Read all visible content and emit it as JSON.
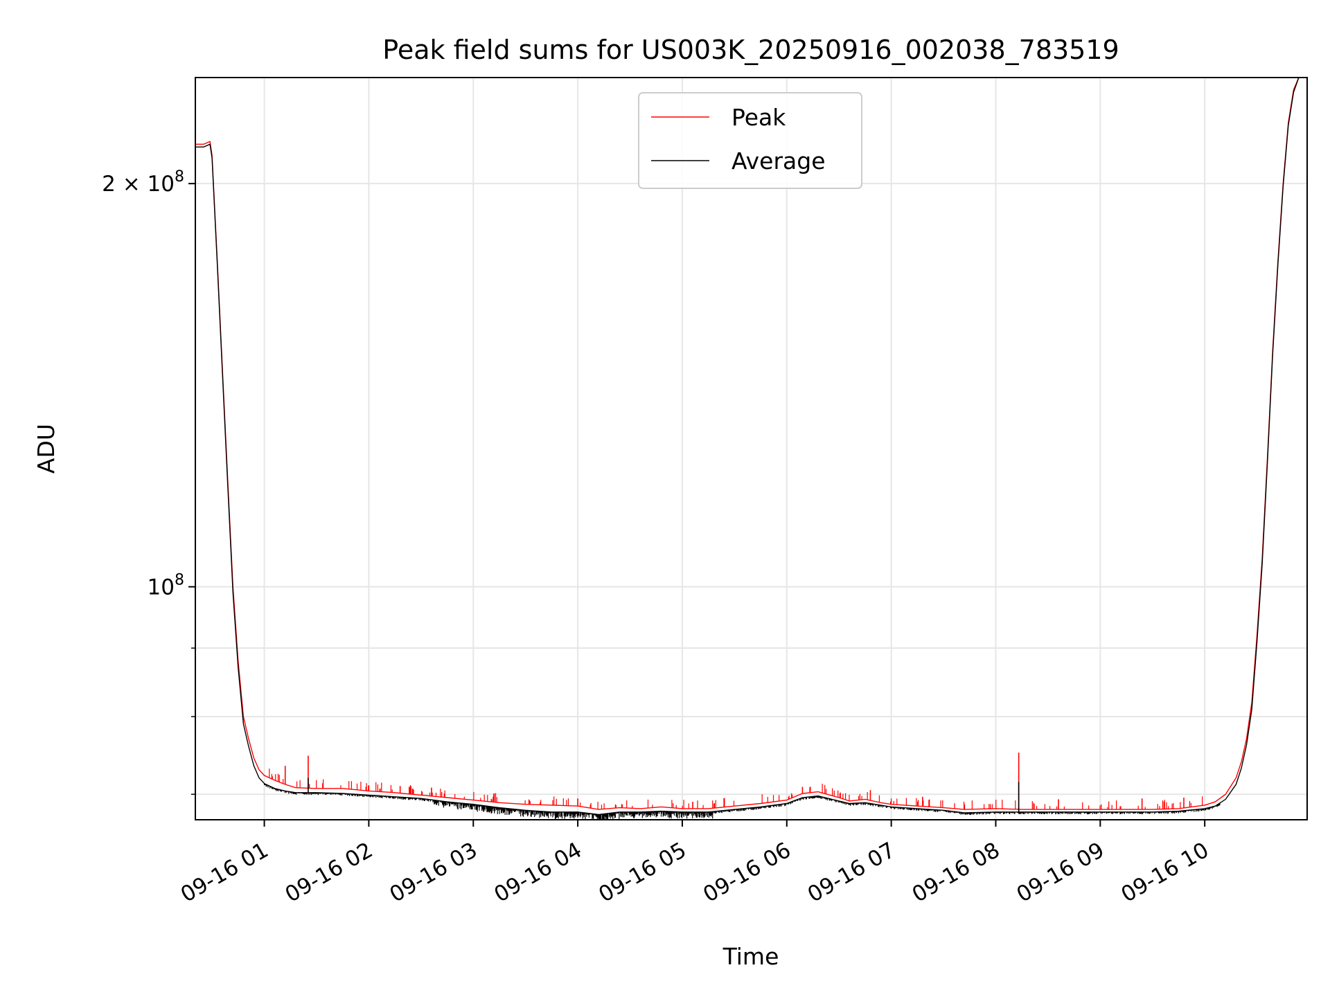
{
  "chart_data": {
    "type": "line",
    "title": "Peak field sums for US003K_20250916_002038_783519",
    "xlabel": "Time",
    "ylabel": "ADU",
    "yscale": "log",
    "grid": true,
    "legend_position": "top-center",
    "x_unit": "hours since 2025-09-16 00:00",
    "xlim": [
      0.34,
      10.98
    ],
    "ylim": [
      67000000,
      240000000
    ],
    "x_ticks": [
      {
        "value": 1,
        "label": "09-16 01"
      },
      {
        "value": 2,
        "label": "09-16 02"
      },
      {
        "value": 3,
        "label": "09-16 03"
      },
      {
        "value": 4,
        "label": "09-16 04"
      },
      {
        "value": 5,
        "label": "09-16 05"
      },
      {
        "value": 6,
        "label": "09-16 06"
      },
      {
        "value": 7,
        "label": "09-16 07"
      },
      {
        "value": 8,
        "label": "09-16 08"
      },
      {
        "value": 9,
        "label": "09-16 09"
      },
      {
        "value": 10,
        "label": "09-16 10"
      }
    ],
    "y_major_ticks": [
      {
        "value": 100000000,
        "base": "10",
        "exp": "8",
        "mantissa": ""
      },
      {
        "value": 200000000,
        "base": "10",
        "exp": "8",
        "mantissa": "2 × "
      }
    ],
    "y_minor_ticks": [
      70000000,
      80000000,
      90000000
    ],
    "series": [
      {
        "name": "Peak",
        "color": "#ff0000",
        "x": [
          0.34,
          0.42,
          0.48,
          0.5,
          0.55,
          0.6,
          0.65,
          0.7,
          0.75,
          0.8,
          0.85,
          0.9,
          0.95,
          1.0,
          1.1,
          1.2,
          1.3,
          1.5,
          1.75,
          2.0,
          2.25,
          2.5,
          2.75,
          3.0,
          3.25,
          3.5,
          3.75,
          4.0,
          4.2,
          4.4,
          4.6,
          4.8,
          5.0,
          5.25,
          5.5,
          5.75,
          6.0,
          6.15,
          6.3,
          6.5,
          6.6,
          6.75,
          6.9,
          7.0,
          7.25,
          7.5,
          7.7,
          8.0,
          8.25,
          8.5,
          8.75,
          9.0,
          9.25,
          9.5,
          9.75,
          10.0,
          10.1,
          10.2,
          10.3,
          10.35,
          10.4,
          10.45,
          10.5,
          10.55,
          10.6,
          10.65,
          10.7,
          10.75,
          10.8,
          10.85,
          10.9,
          10.95,
          10.98
        ],
        "y": [
          214000000,
          214000000,
          215000000,
          210000000,
          175000000,
          145000000,
          120000000,
          100000000,
          88000000,
          80000000,
          77000000,
          74500000,
          73000000,
          72300000,
          71700000,
          71200000,
          70800000,
          70700000,
          70700000,
          70400000,
          70200000,
          69900000,
          69600000,
          69300000,
          69000000,
          68800000,
          68700000,
          68600000,
          68200000,
          68400000,
          68300000,
          68500000,
          68300000,
          68300000,
          68600000,
          68900000,
          69300000,
          70100000,
          70300000,
          69600000,
          69200000,
          69400000,
          69000000,
          68800000,
          68600000,
          68400000,
          68200000,
          68300000,
          68200000,
          68200000,
          68200000,
          68200000,
          68200000,
          68200000,
          68300000,
          68700000,
          69100000,
          70000000,
          72000000,
          74000000,
          77000000,
          82000000,
          92000000,
          105000000,
          125000000,
          150000000,
          175000000,
          200000000,
          222000000,
          235000000,
          240000000,
          240000000,
          240000000
        ],
        "spikes": [
          {
            "x": 1.2,
            "y": 73500000
          },
          {
            "x": 1.42,
            "y": 74800000
          },
          {
            "x": 2.0,
            "y": 71100000
          },
          {
            "x": 2.3,
            "y": 71000000
          },
          {
            "x": 2.6,
            "y": 70800000
          },
          {
            "x": 3.2,
            "y": 70100000
          },
          {
            "x": 4.0,
            "y": 69500000
          },
          {
            "x": 5.1,
            "y": 69100000
          },
          {
            "x": 6.15,
            "y": 70900000
          },
          {
            "x": 6.8,
            "y": 70500000
          },
          {
            "x": 7.3,
            "y": 69700000
          },
          {
            "x": 8.22,
            "y": 75200000
          },
          {
            "x": 8.6,
            "y": 69400000
          },
          {
            "x": 9.4,
            "y": 69500000
          },
          {
            "x": 9.8,
            "y": 69600000
          }
        ]
      },
      {
        "name": "Average",
        "color": "#000000",
        "x": [
          0.34,
          0.42,
          0.48,
          0.5,
          0.55,
          0.6,
          0.65,
          0.7,
          0.75,
          0.8,
          0.85,
          0.9,
          0.95,
          1.0,
          1.1,
          1.2,
          1.3,
          1.5,
          1.75,
          2.0,
          2.25,
          2.5,
          2.75,
          3.0,
          3.25,
          3.5,
          3.75,
          4.0,
          4.2,
          4.4,
          4.6,
          4.8,
          5.0,
          5.25,
          5.5,
          5.75,
          6.0,
          6.15,
          6.3,
          6.5,
          6.6,
          6.75,
          6.9,
          7.0,
          7.25,
          7.5,
          7.7,
          8.0,
          8.25,
          8.5,
          8.75,
          9.0,
          9.25,
          9.5,
          9.75,
          10.0,
          10.1,
          10.2,
          10.3,
          10.35,
          10.4,
          10.45,
          10.5,
          10.55,
          10.6,
          10.65,
          10.7,
          10.75,
          10.8,
          10.85,
          10.9,
          10.95,
          10.98
        ],
        "y": [
          213000000,
          213000000,
          214000000,
          209000000,
          174000000,
          144000000,
          119000000,
          99000000,
          87000000,
          79000000,
          76000000,
          73500000,
          72000000,
          71300000,
          70700000,
          70400000,
          70200000,
          70200000,
          70100000,
          69900000,
          69700000,
          69500000,
          69100000,
          68800000,
          68400000,
          68100000,
          67900000,
          67900000,
          67600000,
          67900000,
          67900000,
          68000000,
          67900000,
          67900000,
          68200000,
          68500000,
          68900000,
          69600000,
          69800000,
          69200000,
          68900000,
          69000000,
          68700000,
          68500000,
          68300000,
          68100000,
          67800000,
          67900000,
          67900000,
          67900000,
          67900000,
          67900000,
          67900000,
          67900000,
          68000000,
          68300000,
          68600000,
          69400000,
          71200000,
          73200000,
          76200000,
          81000000,
          91000000,
          104000000,
          124000000,
          149000000,
          174000000,
          199000000,
          221000000,
          234000000,
          240000000,
          240000000,
          240000000
        ],
        "spikes": [
          {
            "x": 1.42,
            "y": 72000000
          },
          {
            "x": 8.22,
            "y": 71500000
          }
        ]
      }
    ]
  }
}
